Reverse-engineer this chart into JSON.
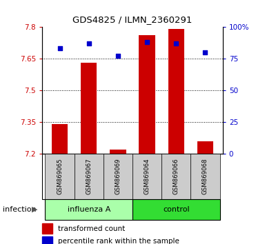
{
  "title": "GDS4825 / ILMN_2360291",
  "samples": [
    "GSM869065",
    "GSM869067",
    "GSM869069",
    "GSM869064",
    "GSM869066",
    "GSM869068"
  ],
  "bar_values": [
    7.34,
    7.63,
    7.22,
    7.76,
    7.79,
    7.26
  ],
  "percentile_values": [
    83,
    87,
    77,
    88,
    87,
    80
  ],
  "bar_bottom": 7.2,
  "ylim_left": [
    7.2,
    7.8
  ],
  "ylim_right": [
    0,
    100
  ],
  "yticks_left": [
    7.2,
    7.35,
    7.5,
    7.65,
    7.8
  ],
  "yticks_right": [
    0,
    25,
    50,
    75,
    100
  ],
  "ytick_labels_left": [
    "7.2",
    "7.35",
    "7.5",
    "7.65",
    "7.8"
  ],
  "ytick_labels_right": [
    "0",
    "25",
    "50",
    "75",
    "100%"
  ],
  "groups": [
    {
      "label": "influenza A",
      "indices": [
        0,
        1,
        2
      ],
      "color": "#aaffaa"
    },
    {
      "label": "control",
      "indices": [
        3,
        4,
        5
      ],
      "color": "#33dd33"
    }
  ],
  "group_label": "infection",
  "bar_color": "#cc0000",
  "dot_color": "#0000cc",
  "legend_bar_label": "transformed count",
  "legend_dot_label": "percentile rank within the sample",
  "bar_width": 0.55,
  "tick_label_color_left": "#cc0000",
  "tick_label_color_right": "#0000cc",
  "bg_xticklabel": "#cccccc",
  "dotted_ticks": [
    7.35,
    7.5,
    7.65
  ]
}
